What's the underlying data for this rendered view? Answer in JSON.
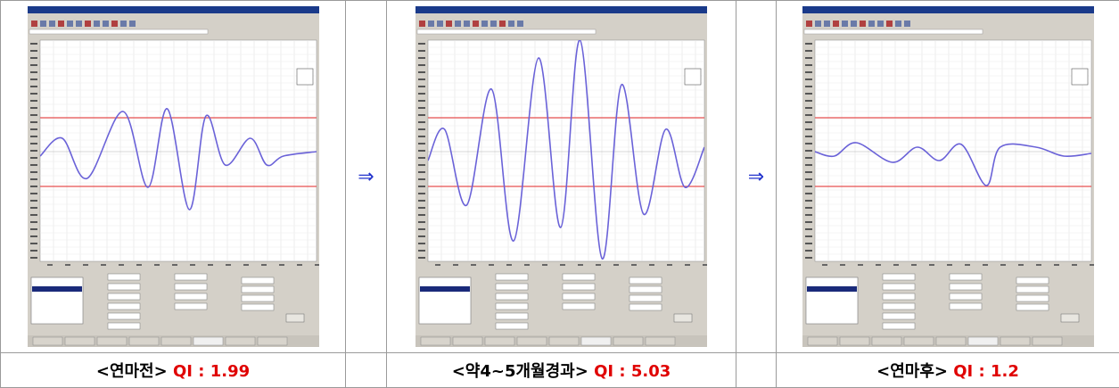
{
  "panels": [
    {
      "caption": "<연마전>",
      "qi": "QI : 1.99"
    },
    {
      "caption": "<약4~5개월경과>",
      "qi": "QI : 5.03"
    },
    {
      "caption": "<연마후>",
      "qi": "QI : 1.2"
    }
  ],
  "arrows": [
    "⇒",
    "⇒"
  ]
}
